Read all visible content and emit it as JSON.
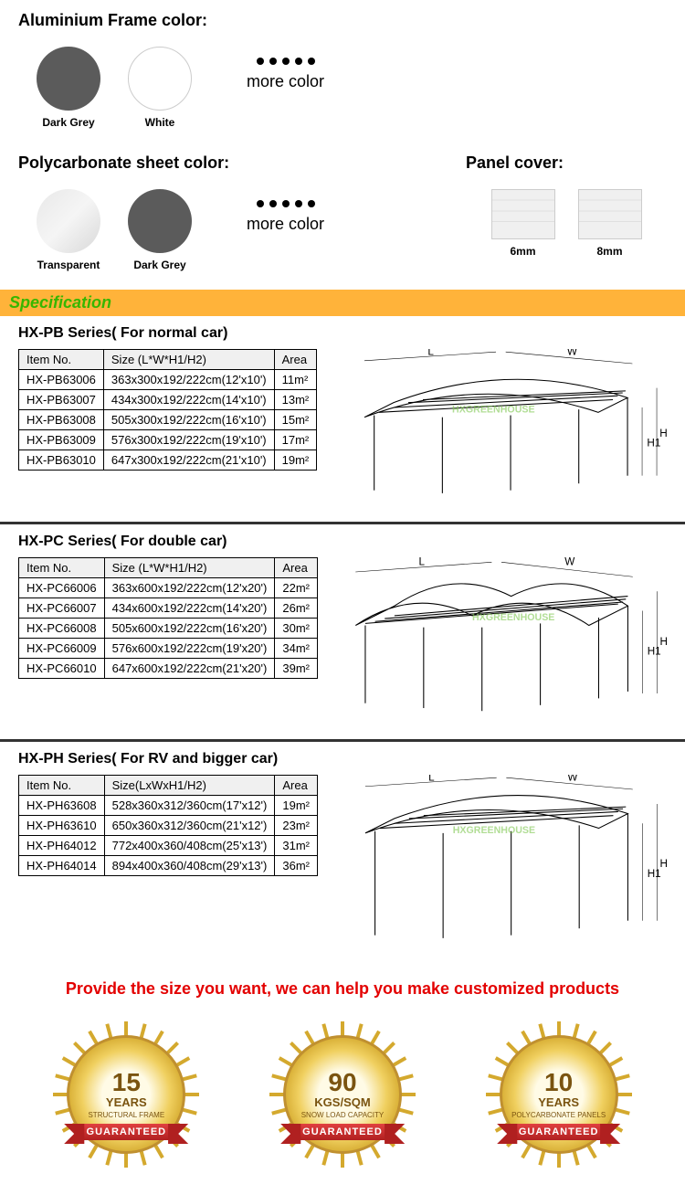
{
  "frame": {
    "title": "Aluminium Frame color:",
    "items": [
      {
        "label": "Dark Grey",
        "color": "#5b5b5b",
        "class": "dark-grey"
      },
      {
        "label": "White",
        "color": "#ffffff",
        "class": "white"
      }
    ],
    "more": "more color"
  },
  "sheet": {
    "title": "Polycarbonate sheet color:",
    "items": [
      {
        "label": "Transparent",
        "class": "transparent-sw"
      },
      {
        "label": "Dark Grey",
        "color": "#5b5b5b",
        "class": "dark-grey"
      }
    ],
    "more": "more color"
  },
  "panel": {
    "title": "Panel cover:",
    "items": [
      {
        "label": "6mm"
      },
      {
        "label": "8mm"
      }
    ]
  },
  "spec_heading": "Specification",
  "series": [
    {
      "title": "HX-PB Series( For normal car)",
      "headers": [
        "Item No.",
        "Size (L*W*H1/H2)",
        "Area"
      ],
      "rows": [
        [
          "HX-PB63006",
          "363x300x192/222cm(12'x10')",
          "11m²"
        ],
        [
          "HX-PB63007",
          "434x300x192/222cm(14'x10')",
          "13m²"
        ],
        [
          "HX-PB63008",
          "505x300x192/222cm(16'x10')",
          "15m²"
        ],
        [
          "HX-PB63009",
          "576x300x192/222cm(19'x10')",
          "17m²"
        ],
        [
          "HX-PB63010",
          "647x300x192/222cm(21'x10')",
          "19m²"
        ]
      ],
      "diagram_type": "single"
    },
    {
      "title": "HX-PC Series( For double car)",
      "headers": [
        "Item No.",
        "Size (L*W*H1/H2)",
        "Area"
      ],
      "rows": [
        [
          "HX-PC66006",
          "363x600x192/222cm(12'x20')",
          "22m²"
        ],
        [
          "HX-PC66007",
          "434x600x192/222cm(14'x20')",
          "26m²"
        ],
        [
          "HX-PC66008",
          "505x600x192/222cm(16'x20')",
          "30m²"
        ],
        [
          "HX-PC66009",
          "576x600x192/222cm(19'x20')",
          "34m²"
        ],
        [
          "HX-PC66010",
          "647x600x192/222cm(21'x20')",
          "39m²"
        ]
      ],
      "diagram_type": "double"
    },
    {
      "title": "HX-PH Series( For RV and bigger car)",
      "headers": [
        "Item No.",
        "Size(LxWxH1/H2)",
        "Area"
      ],
      "rows": [
        [
          "HX-PH63608",
          "528x360x312/360cm(17'x12')",
          "19m²"
        ],
        [
          "HX-PH63610",
          "650x360x312/360cm(21'x12')",
          "23m²"
        ],
        [
          "HX-PH64012",
          "772x400x360/408cm(25'x13')",
          "31m²"
        ],
        [
          "HX-PH64014",
          "894x400x360/408cm(29'x13')",
          "36m²"
        ]
      ],
      "diagram_type": "tall"
    }
  ],
  "dim_labels": {
    "L": "L",
    "W": "W",
    "H1": "H1",
    "H2": "H2"
  },
  "custom_text": "Provide the size you want, we can help you make customized products",
  "badges": [
    {
      "num": "15",
      "unit": "YEARS",
      "sub": "STRUCTURAL FRAME",
      "ribbon": "GUARANTEED"
    },
    {
      "num": "90",
      "unit": "KGS/SQM",
      "sub": "Snow load capacity",
      "ribbon": "GUARANTEED"
    },
    {
      "num": "10",
      "unit": "YEARS",
      "sub": "Polycarbonate Panels",
      "ribbon": "GUARANTEED"
    }
  ],
  "watermark": "HXGREENHOUSE",
  "colors": {
    "spec_bg": "#ffb33a",
    "spec_text": "#37b600",
    "custom_text": "#e30000",
    "badge_gold_light": "#fffbe6",
    "badge_gold_mid": "#f0d060",
    "badge_gold_dark": "#d4a92e",
    "badge_brown": "#7a5410",
    "ribbon": "#c02020"
  }
}
